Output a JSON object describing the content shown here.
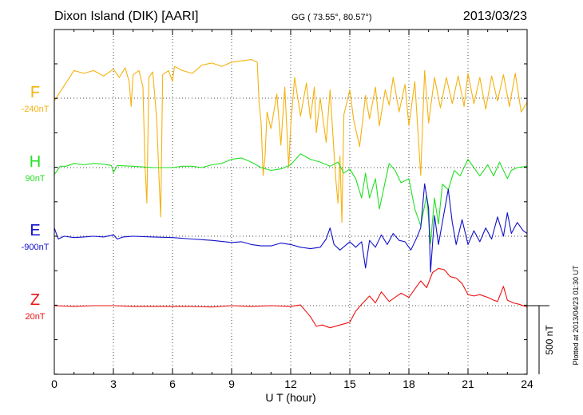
{
  "header": {
    "station": "Dixon Island (DIK)  [AARI]",
    "coords": "GG ( 73.55°,  80.57°)",
    "date": "2013/03/23"
  },
  "side_note": "Plotted at 2013/04/23 01:30 UT",
  "scale_bar": {
    "label": "500 nT",
    "value_nT": 500
  },
  "chart_data": {
    "type": "line",
    "title": "Dixon Island (DIK)  [AARI]",
    "xlabel": "U T (hour)",
    "ylabel": "",
    "xlim": [
      0,
      24
    ],
    "x_ticks": [
      0,
      3,
      6,
      9,
      12,
      15,
      18,
      21,
      24
    ],
    "x_tick_labels": [
      "0",
      "3",
      "6",
      "9",
      "12",
      "15",
      "18",
      "21",
      "24"
    ],
    "grid": true,
    "legend": "left",
    "y_units": "nT",
    "nT_per_division": 500,
    "series": [
      {
        "name": "F",
        "offset_label": "-240nT",
        "color": "#f5b20f",
        "points": [
          [
            0,
            -20
          ],
          [
            0.5,
            90
          ],
          [
            1,
            200
          ],
          [
            1.5,
            180
          ],
          [
            2,
            200
          ],
          [
            2.5,
            160
          ],
          [
            3,
            210
          ],
          [
            3.3,
            150
          ],
          [
            3.6,
            220
          ],
          [
            3.8,
            120
          ],
          [
            3.9,
            -60
          ],
          [
            4.0,
            170
          ],
          [
            4.3,
            200
          ],
          [
            4.5,
            80
          ],
          [
            4.6,
            -480
          ],
          [
            4.7,
            -760
          ],
          [
            4.8,
            150
          ],
          [
            5.0,
            190
          ],
          [
            5.2,
            -160
          ],
          [
            5.3,
            -520
          ],
          [
            5.4,
            -860
          ],
          [
            5.5,
            170
          ],
          [
            5.8,
            200
          ],
          [
            6.0,
            120
          ],
          [
            6.1,
            230
          ],
          [
            6.5,
            200
          ],
          [
            7.0,
            180
          ],
          [
            7.5,
            240
          ],
          [
            8.0,
            255
          ],
          [
            8.5,
            230
          ],
          [
            9.0,
            260
          ],
          [
            9.5,
            270
          ],
          [
            10.0,
            280
          ],
          [
            10.3,
            260
          ],
          [
            10.4,
            -40
          ],
          [
            10.5,
            -180
          ],
          [
            10.6,
            -560
          ],
          [
            10.7,
            -420
          ],
          [
            10.8,
            -100
          ],
          [
            11.0,
            -220
          ],
          [
            11.3,
            30
          ],
          [
            11.5,
            -340
          ],
          [
            11.7,
            80
          ],
          [
            11.9,
            -500
          ],
          [
            12.0,
            -200
          ],
          [
            12.2,
            150
          ],
          [
            12.5,
            -130
          ],
          [
            12.8,
            110
          ],
          [
            13.0,
            -150
          ],
          [
            13.2,
            80
          ],
          [
            13.3,
            -250
          ],
          [
            13.5,
            0
          ],
          [
            13.8,
            -320
          ],
          [
            14.0,
            60
          ],
          [
            14.2,
            -400
          ],
          [
            14.3,
            -600
          ],
          [
            14.4,
            -760
          ],
          [
            14.5,
            -420
          ],
          [
            14.6,
            -900
          ],
          [
            14.7,
            -120
          ],
          [
            15.0,
            60
          ],
          [
            15.2,
            -160
          ],
          [
            15.5,
            -350
          ],
          [
            15.8,
            20
          ],
          [
            16.0,
            -150
          ],
          [
            16.3,
            80
          ],
          [
            16.5,
            -200
          ],
          [
            16.8,
            60
          ],
          [
            17.0,
            -50
          ],
          [
            17.2,
            150
          ],
          [
            17.5,
            -100
          ],
          [
            17.8,
            100
          ],
          [
            18.0,
            -200
          ],
          [
            18.3,
            120
          ],
          [
            18.6,
            -560
          ],
          [
            18.8,
            200
          ],
          [
            19.0,
            -180
          ],
          [
            19.3,
            150
          ],
          [
            19.6,
            -70
          ],
          [
            19.9,
            150
          ],
          [
            20.2,
            -40
          ],
          [
            20.5,
            160
          ],
          [
            20.8,
            -60
          ],
          [
            21.0,
            180
          ],
          [
            21.3,
            -40
          ],
          [
            21.6,
            150
          ],
          [
            21.9,
            -80
          ],
          [
            22.2,
            160
          ],
          [
            22.5,
            -20
          ],
          [
            22.8,
            170
          ],
          [
            23.1,
            -60
          ],
          [
            23.4,
            180
          ],
          [
            23.7,
            -100
          ],
          [
            24.0,
            -30
          ]
        ]
      },
      {
        "name": "H",
        "offset_label": "90nT",
        "color": "#22e022",
        "points": [
          [
            0,
            -50
          ],
          [
            0.3,
            10
          ],
          [
            0.6,
            10
          ],
          [
            1,
            30
          ],
          [
            1.5,
            20
          ],
          [
            2,
            30
          ],
          [
            2.5,
            25
          ],
          [
            2.9,
            15
          ],
          [
            3.0,
            -35
          ],
          [
            3.2,
            15
          ],
          [
            4,
            10
          ],
          [
            5,
            0
          ],
          [
            6,
            0
          ],
          [
            6.5,
            10
          ],
          [
            7,
            10
          ],
          [
            7.5,
            0
          ],
          [
            8,
            20
          ],
          [
            8.5,
            30
          ],
          [
            9,
            60
          ],
          [
            9.5,
            70
          ],
          [
            10,
            40
          ],
          [
            10.5,
            0
          ],
          [
            11,
            -20
          ],
          [
            11.5,
            -10
          ],
          [
            12,
            20
          ],
          [
            12.5,
            100
          ],
          [
            13,
            60
          ],
          [
            13.5,
            40
          ],
          [
            14,
            10
          ],
          [
            14.4,
            40
          ],
          [
            14.7,
            -40
          ],
          [
            15,
            -10
          ],
          [
            15.3,
            -80
          ],
          [
            15.6,
            -220
          ],
          [
            15.8,
            -40
          ],
          [
            16,
            -220
          ],
          [
            16.3,
            -80
          ],
          [
            16.5,
            -300
          ],
          [
            16.8,
            -100
          ],
          [
            17,
            30
          ],
          [
            17.3,
            -20
          ],
          [
            17.6,
            -110
          ],
          [
            18,
            -80
          ],
          [
            18.3,
            -300
          ],
          [
            18.6,
            -420
          ],
          [
            18.9,
            -200
          ],
          [
            19.1,
            -550
          ],
          [
            19.3,
            -220
          ],
          [
            19.5,
            -410
          ],
          [
            19.7,
            -120
          ],
          [
            20,
            -160
          ],
          [
            20.3,
            -20
          ],
          [
            20.6,
            -60
          ],
          [
            21,
            60
          ],
          [
            21.3,
            0
          ],
          [
            21.6,
            -60
          ],
          [
            22,
            20
          ],
          [
            22.3,
            -60
          ],
          [
            22.6,
            40
          ],
          [
            23,
            -80
          ],
          [
            23.2,
            -20
          ],
          [
            23.5,
            0
          ],
          [
            24,
            10
          ]
        ]
      },
      {
        "name": "E",
        "offset_label": "-900nT",
        "color": "#1010cc",
        "points": [
          [
            0,
            60
          ],
          [
            0.2,
            -20
          ],
          [
            0.5,
            0
          ],
          [
            1,
            -10
          ],
          [
            1.5,
            -5
          ],
          [
            2,
            0
          ],
          [
            2.5,
            -5
          ],
          [
            3,
            10
          ],
          [
            3.2,
            -20
          ],
          [
            3.5,
            -5
          ],
          [
            4,
            0
          ],
          [
            5,
            -5
          ],
          [
            6,
            -10
          ],
          [
            7,
            -20
          ],
          [
            8,
            -30
          ],
          [
            9,
            -45
          ],
          [
            9.5,
            -40
          ],
          [
            10,
            -60
          ],
          [
            10.5,
            -70
          ],
          [
            11,
            -70
          ],
          [
            11.5,
            -50
          ],
          [
            12,
            -60
          ],
          [
            12.5,
            -80
          ],
          [
            13,
            -90
          ],
          [
            13.5,
            -80
          ],
          [
            13.8,
            -20
          ],
          [
            14,
            60
          ],
          [
            14.2,
            -60
          ],
          [
            14.5,
            -100
          ],
          [
            15,
            -40
          ],
          [
            15.3,
            -80
          ],
          [
            15.6,
            -40
          ],
          [
            15.8,
            -230
          ],
          [
            16,
            -30
          ],
          [
            16.3,
            -80
          ],
          [
            16.6,
            10
          ],
          [
            16.9,
            -60
          ],
          [
            17.2,
            20
          ],
          [
            17.5,
            -30
          ],
          [
            17.8,
            -40
          ],
          [
            18.1,
            -100
          ],
          [
            18.4,
            -10
          ],
          [
            18.6,
            60
          ],
          [
            18.8,
            380
          ],
          [
            19,
            200
          ],
          [
            19.1,
            -260
          ],
          [
            19.3,
            150
          ],
          [
            19.5,
            -60
          ],
          [
            19.7,
            100
          ],
          [
            20,
            340
          ],
          [
            20.2,
            100
          ],
          [
            20.4,
            -60
          ],
          [
            20.7,
            120
          ],
          [
            21,
            -60
          ],
          [
            21.3,
            40
          ],
          [
            21.6,
            -40
          ],
          [
            21.9,
            60
          ],
          [
            22.2,
            -20
          ],
          [
            22.5,
            140
          ],
          [
            22.8,
            0
          ],
          [
            23,
            170
          ],
          [
            23.2,
            20
          ],
          [
            23.5,
            100
          ],
          [
            23.8,
            40
          ],
          [
            24,
            20
          ]
        ]
      },
      {
        "name": "Z",
        "offset_label": "20nT",
        "color": "#ee1111",
        "points": [
          [
            0,
            0
          ],
          [
            1,
            -5
          ],
          [
            2,
            0
          ],
          [
            3,
            0
          ],
          [
            4,
            -5
          ],
          [
            5,
            -5
          ],
          [
            6,
            -5
          ],
          [
            7,
            -5
          ],
          [
            8,
            -10
          ],
          [
            9,
            0
          ],
          [
            10,
            -5
          ],
          [
            11,
            0
          ],
          [
            12,
            -5
          ],
          [
            12.5,
            5
          ],
          [
            13,
            -80
          ],
          [
            13.3,
            -150
          ],
          [
            13.6,
            -140
          ],
          [
            14,
            -160
          ],
          [
            14.5,
            -140
          ],
          [
            15,
            -120
          ],
          [
            15.3,
            -40
          ],
          [
            15.6,
            10
          ],
          [
            16,
            70
          ],
          [
            16.3,
            20
          ],
          [
            16.6,
            100
          ],
          [
            17,
            30
          ],
          [
            17.3,
            60
          ],
          [
            17.6,
            90
          ],
          [
            18,
            60
          ],
          [
            18.3,
            120
          ],
          [
            18.6,
            180
          ],
          [
            18.9,
            130
          ],
          [
            19.2,
            240
          ],
          [
            19.5,
            270
          ],
          [
            19.8,
            260
          ],
          [
            20.1,
            210
          ],
          [
            20.4,
            200
          ],
          [
            20.7,
            160
          ],
          [
            21,
            80
          ],
          [
            21.3,
            70
          ],
          [
            21.6,
            80
          ],
          [
            22,
            60
          ],
          [
            22.3,
            40
          ],
          [
            22.5,
            30
          ],
          [
            22.8,
            140
          ],
          [
            23,
            40
          ],
          [
            23.3,
            20
          ],
          [
            23.6,
            10
          ],
          [
            24,
            -10
          ]
        ]
      }
    ]
  }
}
